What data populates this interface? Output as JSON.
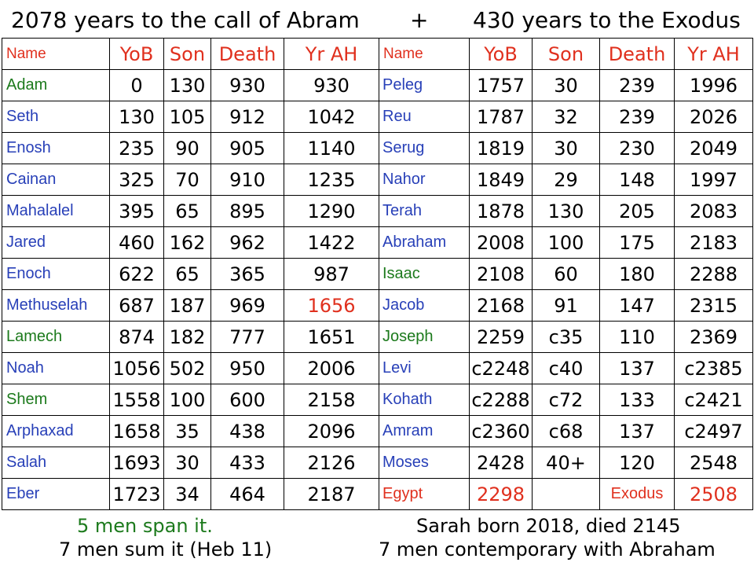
{
  "title": {
    "left": "2078 years to the call of Abram",
    "plus": "+",
    "right": "430 years to the Exodus"
  },
  "colors": {
    "header": "#e0301e",
    "green": "#1c7a1c",
    "blue": "#2840b8",
    "highlight": "#e0301e"
  },
  "table": {
    "headers": {
      "left": [
        "Name",
        "YoB",
        "Son",
        "Death",
        "Yr AH"
      ],
      "right": [
        "Name",
        "YoB",
        "Son",
        "Death",
        "Yr AH"
      ]
    },
    "rows": [
      {
        "left": [
          "Adam",
          "0",
          "130",
          "930",
          "930"
        ],
        "right": [
          "Peleg",
          "1757",
          "30",
          "239",
          "1996"
        ]
      },
      {
        "left": [
          "Seth",
          "130",
          "105",
          "912",
          "1042"
        ],
        "right": [
          "Reu",
          "1787",
          "32",
          "239",
          "2026"
        ]
      },
      {
        "left": [
          "Enosh",
          "235",
          "90",
          "905",
          "1140"
        ],
        "right": [
          "Serug",
          "1819",
          "30",
          "230",
          "2049"
        ]
      },
      {
        "left": [
          "Cainan",
          "325",
          "70",
          "910",
          "1235"
        ],
        "right": [
          "Nahor",
          "1849",
          "29",
          "148",
          "1997"
        ]
      },
      {
        "left": [
          "Mahalalel",
          "395",
          "65",
          "895",
          "1290"
        ],
        "right": [
          "Terah",
          "1878",
          "130",
          "205",
          "2083"
        ]
      },
      {
        "left": [
          "Jared",
          "460",
          "162",
          "962",
          "1422"
        ],
        "right": [
          "Abraham",
          "2008",
          "100",
          "175",
          "2183"
        ]
      },
      {
        "left": [
          "Enoch",
          "622",
          "65",
          "365",
          "987"
        ],
        "right": [
          "Isaac",
          "2108",
          "60",
          "180",
          "2288"
        ]
      },
      {
        "left": [
          "Methuselah",
          "687",
          "187",
          "969",
          "1656"
        ],
        "right": [
          "Jacob",
          "2168",
          "91",
          "147",
          "2315"
        ]
      },
      {
        "left": [
          "Lamech",
          "874",
          "182",
          "777",
          "1651"
        ],
        "right": [
          "Joseph",
          "2259",
          "c35",
          "110",
          "2369"
        ]
      },
      {
        "left": [
          "Noah",
          "1056",
          "502",
          "950",
          "2006"
        ],
        "right": [
          "Levi",
          "c2248",
          "c40",
          "137",
          "c2385"
        ]
      },
      {
        "left": [
          "Shem",
          "1558",
          "100",
          "600",
          "2158"
        ],
        "right": [
          "Kohath",
          "c2288",
          "c72",
          "133",
          "c2421"
        ]
      },
      {
        "left": [
          "Arphaxad",
          "1658",
          "35",
          "438",
          "2096"
        ],
        "right": [
          "Amram",
          "c2360",
          "c68",
          "137",
          "c2497"
        ]
      },
      {
        "left": [
          "Salah",
          "1693",
          "30",
          "433",
          "2126"
        ],
        "right": [
          "Moses",
          "2428",
          "40+",
          "120",
          "2548"
        ]
      },
      {
        "left": [
          "Eber",
          "1723",
          "34",
          "464",
          "2187"
        ],
        "right": [
          "Egypt",
          "2298",
          "",
          "Exodus",
          "2508"
        ]
      }
    ]
  },
  "footer": {
    "left_line1": "5 men span it.",
    "left_line2": "7 men sum it (Heb 11)",
    "right_line1": "Sarah born 2018, died 2145",
    "right_line2": "7 men contemporary with Abraham"
  }
}
